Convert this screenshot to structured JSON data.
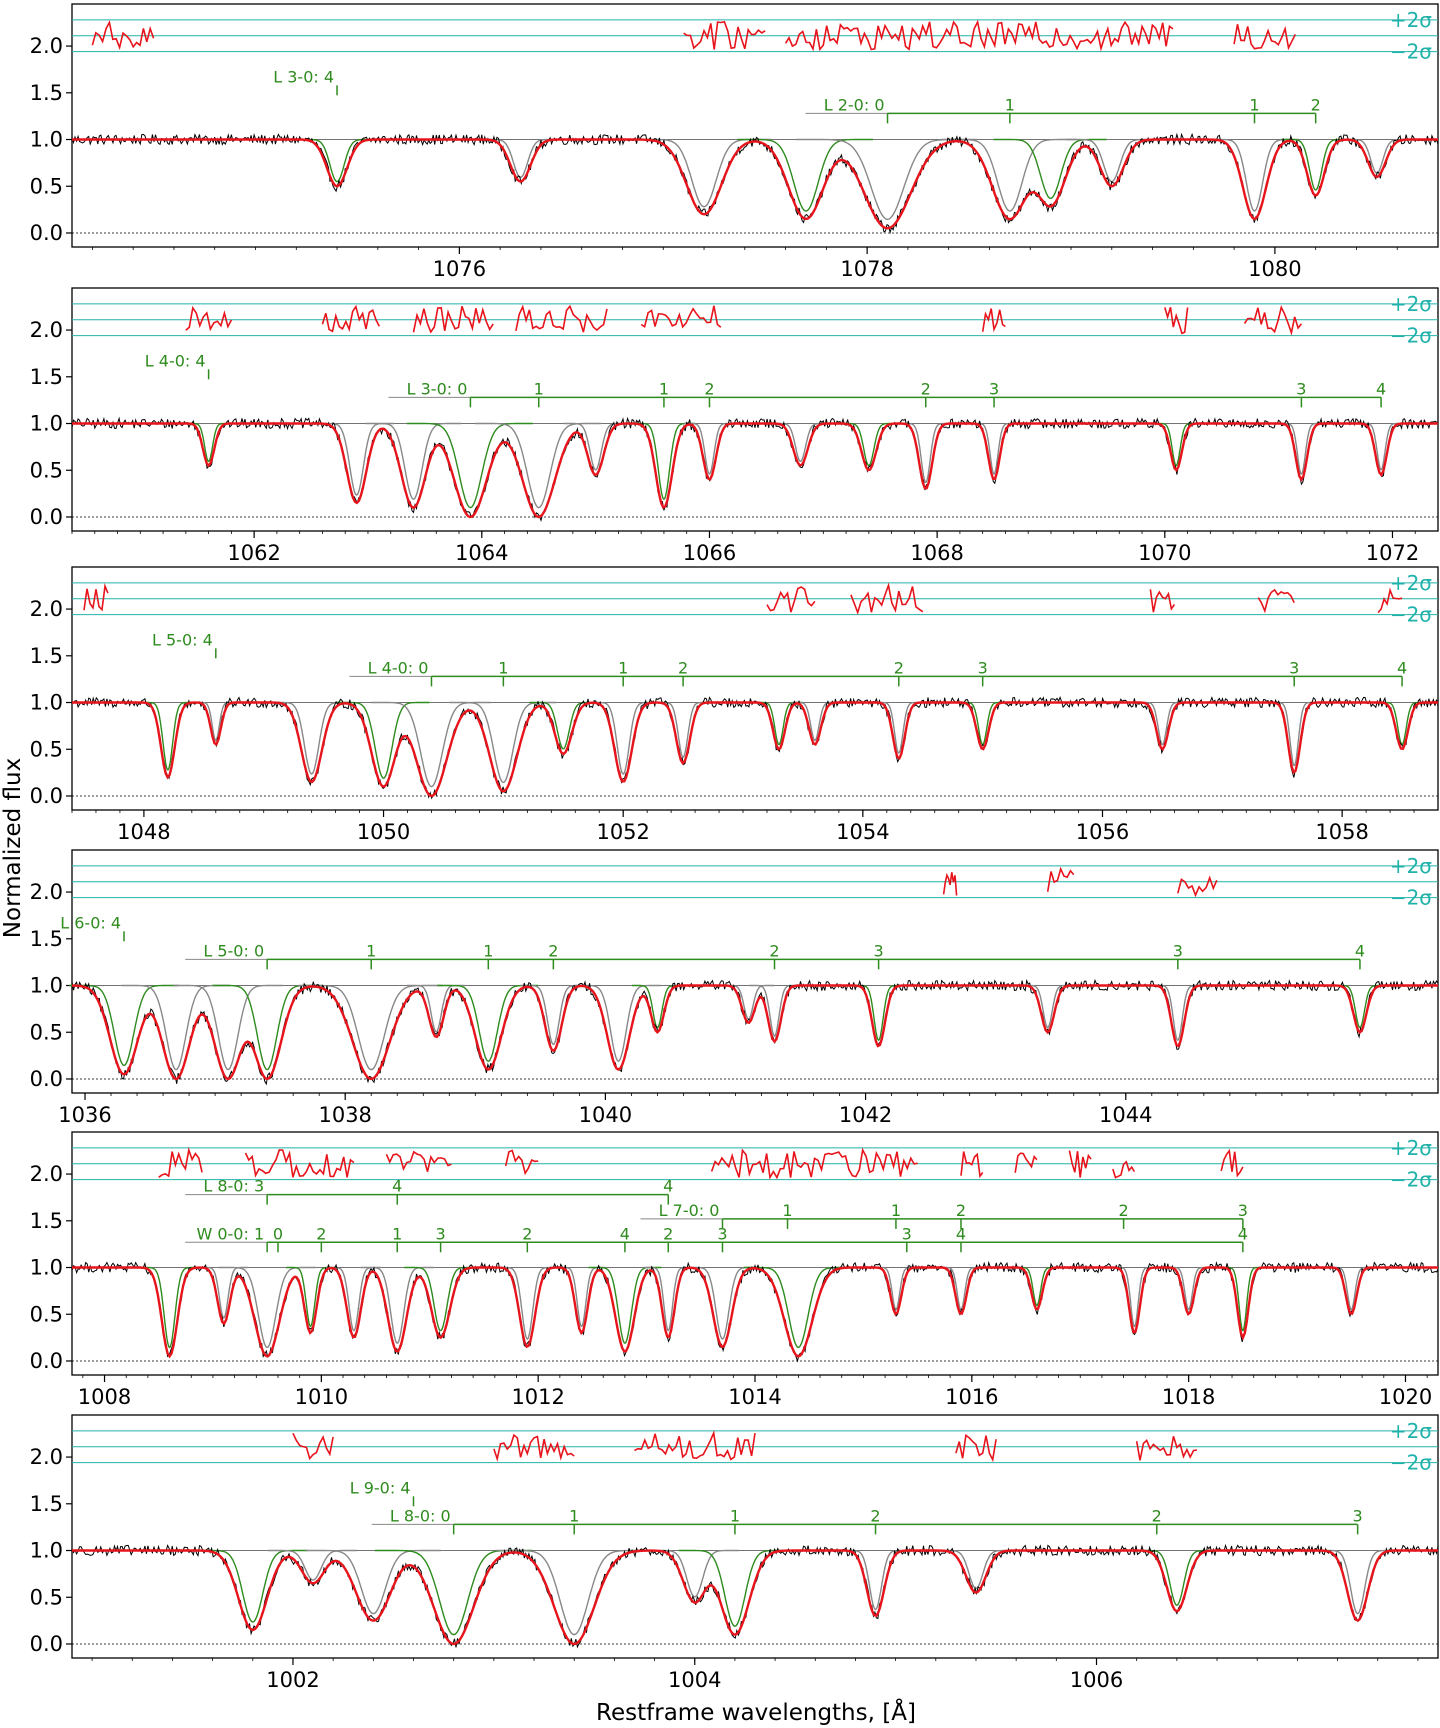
{
  "chart_data": {
    "type": "line",
    "title": "",
    "xlabel": "Restframe wavelengths, [Å]",
    "ylabel": "Normalized flux",
    "sigma_labels": [
      "+2σ",
      "−2σ"
    ],
    "colors": {
      "data": "#000000",
      "model": "#e8141c",
      "components": "#888888",
      "species": "#2e8b1e",
      "sigma": "#20b2aa",
      "residual": "#e8141c"
    },
    "panels": [
      {
        "xlim": [
          1074.1,
          1080.8
        ],
        "ylim": [
          -0.15,
          2.45
        ],
        "xticks": [
          1076,
          1078,
          1080
        ],
        "yticks": [
          "0.0",
          "0.5",
          "1.0",
          "1.5",
          "2.0"
        ],
        "sigma_levels": [
          2.28,
          2.11,
          1.94
        ],
        "lines": [
          1075.4,
          1076.3,
          1077.2,
          1077.7,
          1078.1,
          1078.7,
          1078.9,
          1079.2,
          1079.9,
          1080.2,
          1080.5
        ],
        "depths": [
          0.5,
          0.45,
          0.8,
          0.85,
          0.95,
          0.85,
          0.7,
          0.5,
          0.85,
          0.6,
          0.4
        ],
        "widths": [
          0.07,
          0.07,
          0.12,
          0.12,
          0.16,
          0.12,
          0.1,
          0.08,
          0.08,
          0.06,
          0.06
        ],
        "residual_ranges": [
          [
            1074.2,
            1074.5
          ],
          [
            1077.1,
            1077.5
          ],
          [
            1077.6,
            1079.5
          ],
          [
            1079.8,
            1080.1
          ]
        ],
        "bars": [
          {
            "label": "L 3-0: 4",
            "y": 1.58,
            "x0": 1075.4,
            "x1": 1075.4,
            "ticks": [
              1075.4
            ]
          },
          {
            "label": "L 2-0: 0",
            "y": 1.28,
            "x0": 1078.1,
            "x1": 1080.2,
            "ticks": [
              1078.1,
              1078.7,
              1079.9,
              1080.2
            ],
            "tick_labels": [
              "",
              "1",
              "1",
              "2"
            ]
          }
        ]
      },
      {
        "xlim": [
          1060.4,
          1072.4
        ],
        "ylim": [
          -0.15,
          2.45
        ],
        "xticks": [
          1062,
          1064,
          1066,
          1068,
          1070,
          1072
        ],
        "yticks": [
          "0.0",
          "0.5",
          "1.0",
          "1.5",
          "2.0"
        ],
        "sigma_levels": [
          2.28,
          2.11,
          1.94
        ],
        "lines": [
          1061.6,
          1062.9,
          1063.4,
          1063.9,
          1064.5,
          1065.0,
          1065.6,
          1066.0,
          1066.8,
          1067.4,
          1067.9,
          1068.5,
          1070.1,
          1071.2,
          1071.9
        ],
        "depths": [
          0.45,
          0.85,
          0.9,
          1.0,
          1.0,
          0.55,
          0.9,
          0.6,
          0.45,
          0.5,
          0.7,
          0.6,
          0.5,
          0.6,
          0.55
        ],
        "widths": [
          0.07,
          0.12,
          0.15,
          0.2,
          0.2,
          0.1,
          0.1,
          0.08,
          0.09,
          0.09,
          0.08,
          0.07,
          0.07,
          0.07,
          0.07
        ],
        "residual_ranges": [
          [
            1061.4,
            1061.8
          ],
          [
            1062.6,
            1063.1
          ],
          [
            1063.4,
            1064.1
          ],
          [
            1064.3,
            1065.1
          ],
          [
            1065.4,
            1066.1
          ],
          [
            1068.4,
            1068.6
          ],
          [
            1070.0,
            1070.2
          ],
          [
            1070.7,
            1071.2
          ]
        ],
        "bars": [
          {
            "label": "L 4-0: 4",
            "y": 1.58,
            "x0": 1061.6,
            "x1": 1061.6,
            "ticks": [
              1061.6
            ]
          },
          {
            "label": "L 3-0: 0",
            "y": 1.28,
            "x0": 1063.9,
            "x1": 1071.9,
            "ticks": [
              1063.9,
              1064.5,
              1065.6,
              1066.0,
              1067.9,
              1068.5,
              1071.2,
              1071.9
            ],
            "tick_labels": [
              "",
              "1",
              "1",
              "2",
              "2",
              "3",
              "3",
              "4"
            ]
          }
        ]
      },
      {
        "xlim": [
          1047.4,
          1058.8
        ],
        "ylim": [
          -0.15,
          2.45
        ],
        "xticks": [
          1048,
          1050,
          1052,
          1054,
          1056,
          1058
        ],
        "yticks": [
          "0.0",
          "0.5",
          "1.0",
          "1.5",
          "2.0"
        ],
        "sigma_levels": [
          2.28,
          2.11,
          1.94
        ],
        "lines": [
          1048.2,
          1048.6,
          1049.4,
          1050.0,
          1050.4,
          1051.0,
          1051.5,
          1052.0,
          1052.5,
          1053.3,
          1053.6,
          1054.3,
          1055.0,
          1056.5,
          1057.6,
          1058.5
        ],
        "depths": [
          0.8,
          0.45,
          0.85,
          0.9,
          1.0,
          0.95,
          0.55,
          0.85,
          0.65,
          0.5,
          0.45,
          0.6,
          0.5,
          0.5,
          0.75,
          0.5
        ],
        "widths": [
          0.08,
          0.06,
          0.12,
          0.14,
          0.18,
          0.16,
          0.1,
          0.1,
          0.08,
          0.07,
          0.07,
          0.07,
          0.07,
          0.07,
          0.07,
          0.07
        ],
        "residual_ranges": [
          [
            1047.5,
            1047.7
          ],
          [
            1053.2,
            1053.6
          ],
          [
            1053.9,
            1054.5
          ],
          [
            1056.4,
            1056.6
          ],
          [
            1057.3,
            1057.6
          ],
          [
            1058.3,
            1058.5
          ]
        ],
        "bars": [
          {
            "label": "L 5-0: 4",
            "y": 1.58,
            "x0": 1048.6,
            "x1": 1048.6,
            "ticks": [
              1048.6
            ]
          },
          {
            "label": "L 4-0: 0",
            "y": 1.28,
            "x0": 1050.4,
            "x1": 1058.5,
            "ticks": [
              1050.4,
              1051.0,
              1052.0,
              1052.5,
              1054.3,
              1055.0,
              1057.6,
              1058.5
            ],
            "tick_labels": [
              "",
              "1",
              "1",
              "2",
              "2",
              "3",
              "3",
              "4"
            ]
          }
        ]
      },
      {
        "xlim": [
          1035.9,
          1046.4
        ],
        "ylim": [
          -0.15,
          2.45
        ],
        "xticks": [
          1036,
          1038,
          1040,
          1042,
          1044
        ],
        "yticks": [
          "0.0",
          "0.5",
          "1.0",
          "1.5",
          "2.0"
        ],
        "sigma_levels": [
          2.28,
          2.11,
          1.94
        ],
        "lines": [
          1036.3,
          1036.7,
          1037.1,
          1037.4,
          1038.2,
          1038.7,
          1039.1,
          1039.6,
          1040.1,
          1040.4,
          1041.1,
          1041.3,
          1042.1,
          1043.4,
          1044.4,
          1045.8
        ],
        "depths": [
          0.95,
          1.0,
          1.0,
          1.0,
          1.0,
          0.55,
          0.9,
          0.7,
          0.9,
          0.5,
          0.4,
          0.6,
          0.65,
          0.5,
          0.65,
          0.5
        ],
        "widths": [
          0.15,
          0.15,
          0.15,
          0.15,
          0.2,
          0.08,
          0.14,
          0.09,
          0.12,
          0.07,
          0.07,
          0.07,
          0.07,
          0.07,
          0.07,
          0.07
        ],
        "residual_ranges": [
          [
            1042.6,
            1042.7
          ],
          [
            1043.4,
            1043.6
          ],
          [
            1044.4,
            1044.7
          ]
        ],
        "bars": [
          {
            "label": "L 6-0: 4",
            "y": 1.58,
            "x0": 1036.3,
            "x1": 1036.3,
            "ticks": [
              1036.3
            ]
          },
          {
            "label": "L 5-0: 0",
            "y": 1.28,
            "x0": 1037.4,
            "x1": 1045.8,
            "ticks": [
              1037.4,
              1038.2,
              1039.1,
              1039.6,
              1041.3,
              1042.1,
              1044.4,
              1045.8
            ],
            "tick_labels": [
              "",
              "1",
              "1",
              "2",
              "2",
              "3",
              "3",
              "4"
            ]
          }
        ]
      },
      {
        "xlim": [
          1007.7,
          1020.3
        ],
        "ylim": [
          -0.15,
          2.45
        ],
        "xticks": [
          1008,
          1010,
          1012,
          1014,
          1016,
          1018,
          1020
        ],
        "yticks": [
          "0.0",
          "0.5",
          "1.0",
          "1.5",
          "2.0"
        ],
        "sigma_levels": [
          2.28,
          2.11,
          1.94
        ],
        "lines": [
          1008.6,
          1009.1,
          1009.5,
          1009.9,
          1010.3,
          1010.7,
          1011.1,
          1011.9,
          1012.4,
          1012.8,
          1013.2,
          1013.7,
          1014.4,
          1015.3,
          1015.9,
          1016.6,
          1017.5,
          1018.0,
          1018.5,
          1019.5
        ],
        "depths": [
          0.95,
          0.6,
          0.95,
          0.7,
          0.75,
          0.9,
          0.75,
          0.85,
          0.7,
          0.9,
          0.75,
          0.85,
          0.95,
          0.5,
          0.5,
          0.45,
          0.7,
          0.5,
          0.75,
          0.5
        ],
        "widths": [
          0.1,
          0.08,
          0.16,
          0.08,
          0.09,
          0.12,
          0.12,
          0.1,
          0.08,
          0.12,
          0.08,
          0.12,
          0.18,
          0.07,
          0.07,
          0.07,
          0.07,
          0.07,
          0.07,
          0.07
        ],
        "residual_ranges": [
          [
            1008.5,
            1008.9
          ],
          [
            1009.3,
            1010.3
          ],
          [
            1010.6,
            1011.2
          ],
          [
            1011.7,
            1012.0
          ],
          [
            1013.6,
            1015.5
          ],
          [
            1015.9,
            1016.1
          ],
          [
            1016.4,
            1016.6
          ],
          [
            1016.9,
            1017.1
          ],
          [
            1017.3,
            1017.5
          ],
          [
            1018.3,
            1018.5
          ]
        ],
        "bars": [
          {
            "label": "L 8-0: 3",
            "y": 1.78,
            "x0": 1009.5,
            "x1": 1013.2,
            "ticks": [
              1009.5,
              1010.7,
              1013.2
            ],
            "tick_labels": [
              "",
              "4",
              "4"
            ]
          },
          {
            "label": "L 7-0: 0",
            "y": 1.52,
            "x0": 1013.7,
            "x1": 1018.5,
            "ticks": [
              1013.7,
              1014.3,
              1015.3,
              1015.9,
              1017.4,
              1018.5
            ],
            "tick_labels": [
              "",
              "1",
              "1",
              "2",
              "2",
              "3"
            ]
          },
          {
            "label": "W 0-0: 1",
            "y": 1.27,
            "x0": 1009.5,
            "x1": 1018.5,
            "ticks": [
              1009.5,
              1009.6,
              1010.0,
              1010.7,
              1011.1,
              1011.9,
              1012.8,
              1013.2,
              1013.7,
              1015.4,
              1015.9,
              1018.5
            ],
            "tick_labels": [
              "",
              "0",
              "2",
              "1",
              "3",
              "2",
              "4",
              "2",
              "3",
              "3",
              "4",
              "4"
            ]
          }
        ]
      },
      {
        "xlim": [
          1000.9,
          1007.7
        ],
        "ylim": [
          -0.15,
          2.45
        ],
        "xticks": [
          1002,
          1004,
          1006
        ],
        "yticks": [
          "0.0",
          "0.5",
          "1.0",
          "1.5",
          "2.0"
        ],
        "sigma_levels": [
          2.28,
          2.11,
          1.94
        ],
        "lines": [
          1001.8,
          1002.1,
          1002.4,
          1002.8,
          1003.4,
          1004.0,
          1004.2,
          1004.9,
          1005.4,
          1006.4,
          1007.3
        ],
        "depths": [
          0.85,
          0.35,
          0.75,
          1.0,
          1.0,
          0.55,
          0.9,
          0.7,
          0.45,
          0.65,
          0.75
        ],
        "widths": [
          0.1,
          0.08,
          0.12,
          0.14,
          0.14,
          0.08,
          0.1,
          0.06,
          0.07,
          0.07,
          0.07
        ],
        "residual_ranges": [
          [
            1002.0,
            1002.2
          ],
          [
            1003.0,
            1003.4
          ],
          [
            1003.7,
            1004.3
          ],
          [
            1005.3,
            1005.5
          ],
          [
            1006.2,
            1006.5
          ]
        ],
        "bars": [
          {
            "label": "L 9-0: 4",
            "y": 1.58,
            "x0": 1002.6,
            "x1": 1002.6,
            "ticks": [
              1002.6
            ]
          },
          {
            "label": "L 8-0: 0",
            "y": 1.28,
            "x0": 1002.8,
            "x1": 1007.3,
            "ticks": [
              1002.8,
              1003.4,
              1004.2,
              1004.9,
              1006.3,
              1007.3
            ],
            "tick_labels": [
              "",
              "1",
              "1",
              "2",
              "2",
              "3"
            ]
          }
        ]
      }
    ]
  }
}
